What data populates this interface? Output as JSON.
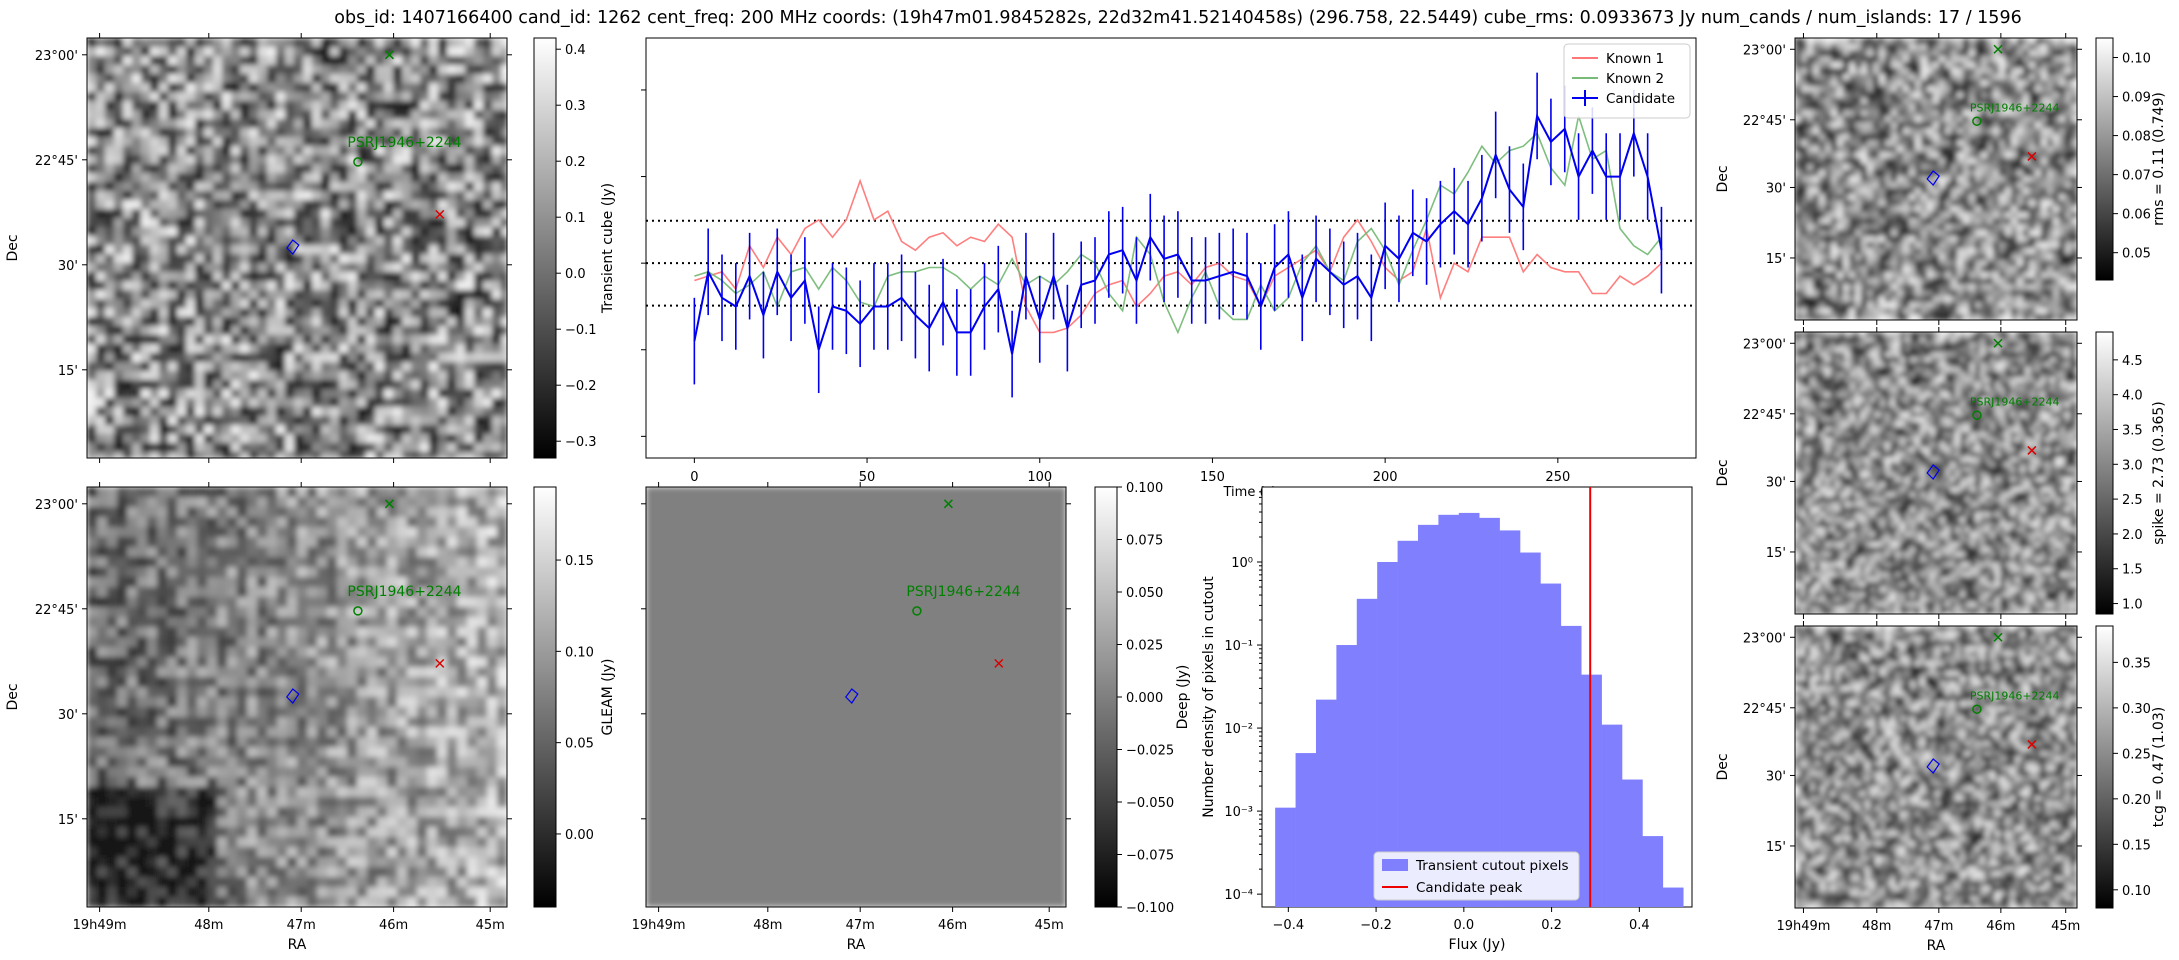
{
  "suptitle": "obs_id: 1407166400 cand_id: 1262 cent_freq: 200 MHz coords: (19h47m01.9845282s, 22d32m41.52140458s) (296.758, 22.5449) cube_rms: 0.0933673 Jy num_cands / num_islands: 17 / 1596",
  "colors": {
    "known1": "#ff7777",
    "known2": "#77bb77",
    "candidate": "#0000ee",
    "hist_fill": "#8080ff",
    "peak": "#ee0000",
    "green": "#008000",
    "red": "#dd0000"
  },
  "sky": {
    "ra_ticks": [
      "19h49m",
      "48m",
      "47m",
      "46m",
      "45m"
    ],
    "ra_label": "RA",
    "dec_ticks": [
      "23°00'",
      "22°45'",
      "30'",
      "15'"
    ],
    "dec_label": "Dec",
    "source_label": "PSRJ1946+2244"
  },
  "panels": {
    "transient": {
      "cbar_label": "Transient cube (Jy)",
      "cbar_range": [
        -0.33,
        0.42
      ],
      "cbar_ticks": [
        "0.4",
        "0.3",
        "0.2",
        "0.1",
        "0.0",
        "−0.1",
        "−0.2",
        "−0.3"
      ],
      "cbar_tick_values": [
        0.4,
        0.3,
        0.2,
        0.1,
        0.0,
        -0.1,
        -0.2,
        -0.3
      ]
    },
    "gleam": {
      "cbar_label": "GLEAM (Jy)",
      "cbar_range": [
        -0.04,
        0.19
      ],
      "cbar_ticks": [
        "0.15",
        "0.10",
        "0.05",
        "0.00"
      ],
      "cbar_tick_values": [
        0.15,
        0.1,
        0.05,
        0.0
      ]
    },
    "deep": {
      "cbar_label": "Deep (Jy)",
      "cbar_range": [
        -0.1,
        0.1
      ],
      "cbar_ticks": [
        "0.100",
        "0.075",
        "0.050",
        "0.025",
        "0.000",
        "−0.025",
        "−0.050",
        "−0.075",
        "−0.100"
      ],
      "cbar_tick_values": [
        0.1,
        0.075,
        0.05,
        0.025,
        0.0,
        -0.025,
        -0.05,
        -0.075,
        -0.1
      ]
    },
    "rms": {
      "cbar_label": "rms = 0.11 (0.749)",
      "cbar_range": [
        0.043,
        0.105
      ],
      "cbar_ticks": [
        "0.10",
        "0.09",
        "0.08",
        "0.07",
        "0.06",
        "0.05"
      ],
      "cbar_tick_values": [
        0.1,
        0.09,
        0.08,
        0.07,
        0.06,
        0.05
      ]
    },
    "spike": {
      "cbar_label": "spike = 2.73 (0.365)",
      "cbar_range": [
        0.85,
        4.9
      ],
      "cbar_ticks": [
        "4.5",
        "4.0",
        "3.5",
        "3.0",
        "2.5",
        "2.0",
        "1.5",
        "1.0"
      ],
      "cbar_tick_values": [
        4.5,
        4.0,
        3.5,
        3.0,
        2.5,
        2.0,
        1.5,
        1.0
      ]
    },
    "tcg": {
      "cbar_label": "tcg = 0.47 (1.03)",
      "cbar_range": [
        0.08,
        0.39
      ],
      "cbar_ticks": [
        "0.35",
        "0.30",
        "0.25",
        "0.20",
        "0.15",
        "0.10"
      ],
      "cbar_tick_values": [
        0.35,
        0.3,
        0.25,
        0.2,
        0.15,
        0.1
      ]
    }
  },
  "chart_data": [
    {
      "type": "line",
      "xlabel": "Time (s)",
      "ylabel": "",
      "xlim": [
        -14,
        290
      ],
      "ylim": [
        -0.45,
        0.52
      ],
      "xticks": [
        0,
        50,
        100,
        150,
        200,
        250
      ],
      "hlines": [
        0.098,
        0.0,
        -0.098
      ],
      "x_step": 4,
      "legend": [
        "Known 1",
        "Known 2",
        "Candidate"
      ],
      "legend_loc": "upper right",
      "series": [
        {
          "name": "Known 1",
          "values": [
            -0.04,
            -0.03,
            -0.02,
            -0.06,
            0.04,
            -0.01,
            0.06,
            0.02,
            0.08,
            0.1,
            0.06,
            0.1,
            0.19,
            0.1,
            0.12,
            0.05,
            0.03,
            0.06,
            0.07,
            0.04,
            0.06,
            0.05,
            0.09,
            0.06,
            -0.1,
            -0.16,
            -0.16,
            -0.15,
            -0.12,
            -0.07,
            -0.05,
            -0.04,
            -0.1,
            -0.07,
            -0.03,
            -0.02,
            -0.05,
            -0.01,
            0.0,
            -0.03,
            -0.04,
            -0.1,
            -0.03,
            -0.01,
            0.01,
            0.03,
            -0.02,
            0.06,
            0.1,
            0.05,
            -0.01,
            -0.04,
            -0.02,
            0.08,
            -0.08,
            0.0,
            -0.02,
            0.06,
            0.06,
            0.06,
            -0.02,
            0.02,
            -0.01,
            -0.02,
            -0.02,
            -0.07,
            -0.07,
            -0.03,
            -0.05,
            -0.03,
            0.0
          ]
        },
        {
          "name": "Known 2",
          "values": [
            -0.03,
            -0.02,
            -0.04,
            -0.07,
            -0.05,
            -0.02,
            -0.1,
            -0.02,
            -0.01,
            -0.06,
            -0.01,
            -0.04,
            -0.09,
            -0.1,
            -0.03,
            -0.02,
            -0.02,
            -0.01,
            -0.01,
            -0.03,
            -0.06,
            -0.03,
            -0.05,
            0.01,
            -0.05,
            -0.03,
            -0.05,
            -0.02,
            0.02,
            0.0,
            -0.07,
            -0.11,
            0.06,
            0.02,
            -0.09,
            -0.16,
            -0.08,
            -0.02,
            -0.1,
            -0.13,
            -0.13,
            -0.05,
            -0.11,
            -0.08,
            0.0,
            0.04,
            -0.02,
            -0.04,
            0.05,
            0.08,
            0.03,
            -0.05,
            0.03,
            0.1,
            0.18,
            0.16,
            0.21,
            0.27,
            0.23,
            0.26,
            0.27,
            0.3,
            0.22,
            0.18,
            0.34,
            0.24,
            0.26,
            0.08,
            0.04,
            0.02,
            0.06
          ]
        },
        {
          "name": "Candidate",
          "values": [
            -0.18,
            -0.02,
            -0.08,
            -0.1,
            -0.03,
            -0.12,
            -0.02,
            -0.08,
            -0.04,
            -0.2,
            -0.1,
            -0.11,
            -0.14,
            -0.1,
            -0.1,
            -0.08,
            -0.12,
            -0.15,
            -0.09,
            -0.16,
            -0.16,
            -0.1,
            -0.06,
            -0.21,
            -0.03,
            -0.13,
            -0.03,
            -0.15,
            -0.05,
            -0.04,
            0.02,
            0.03,
            -0.04,
            0.06,
            0.01,
            0.02,
            -0.04,
            -0.04,
            -0.03,
            -0.02,
            -0.03,
            -0.1,
            -0.01,
            0.02,
            -0.08,
            0.01,
            -0.02,
            -0.05,
            -0.03,
            -0.08,
            0.04,
            0.01,
            0.07,
            0.05,
            0.09,
            0.12,
            0.09,
            0.15,
            0.25,
            0.17,
            0.13,
            0.34,
            0.28,
            0.31,
            0.2,
            0.26,
            0.2,
            0.2,
            0.3,
            0.2,
            0.03
          ],
          "err": 0.1
        }
      ]
    },
    {
      "type": "bar",
      "xlabel": "Flux (Jy)",
      "ylabel": "Number density of pixels in cutout",
      "yscale": "log",
      "xlim": [
        -0.46,
        0.52
      ],
      "ylim": [
        7e-05,
        8
      ],
      "xticks": [
        -0.4,
        -0.2,
        0.0,
        0.2,
        0.4
      ],
      "xticklabels": [
        "−0.4",
        "−0.2",
        "0.0",
        "0.2",
        "0.4"
      ],
      "yticks": [
        0.0001,
        0.001,
        0.01,
        0.1,
        1
      ],
      "yticklabels": [
        "10⁻⁴",
        "10⁻³",
        "10⁻²",
        "10⁻¹",
        "10⁰"
      ],
      "bin_start": -0.43,
      "bin_width": 0.0465,
      "values": [
        0.0011,
        0.005,
        0.022,
        0.1,
        0.36,
        1.0,
        1.8,
        2.8,
        3.7,
        3.9,
        3.4,
        2.4,
        1.3,
        0.55,
        0.17,
        0.044,
        0.011,
        0.0024,
        0.0005,
        0.00012
      ],
      "peak_x": 0.288,
      "legend": [
        "Transient cutout pixels",
        "Candidate peak"
      ],
      "legend_loc": "lower center"
    }
  ]
}
